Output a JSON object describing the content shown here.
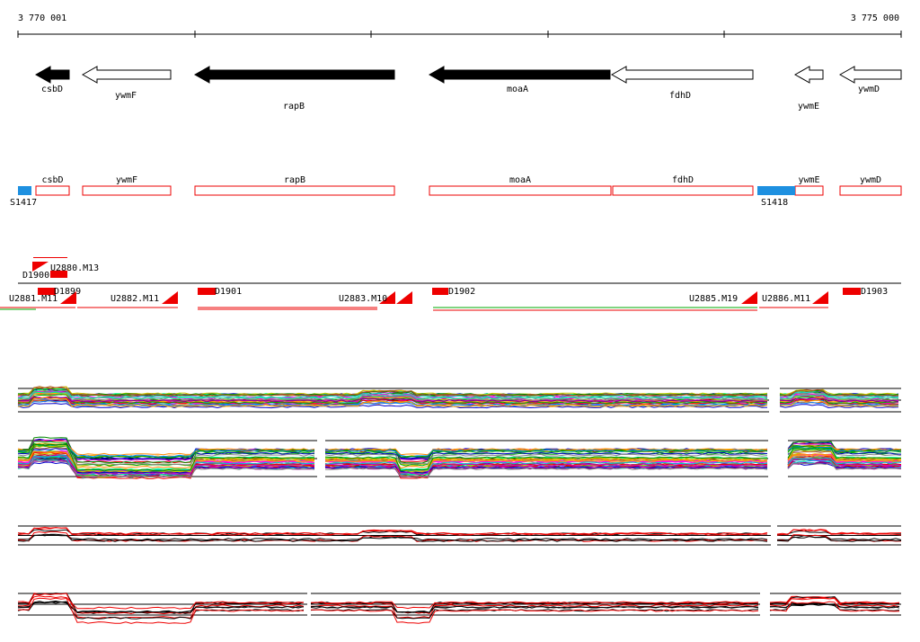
{
  "axis": {
    "start": "3 770 001",
    "end": "3 775 000"
  },
  "genes": [
    {
      "label": "csbD"
    },
    {
      "label": "ywmF"
    },
    {
      "label": "rapB"
    },
    {
      "label": "moaA"
    },
    {
      "label": "fdhD"
    },
    {
      "label": "ywmE"
    },
    {
      "label": "ywmD"
    }
  ],
  "segments": [
    {
      "label": "csbD"
    },
    {
      "label": "ywmF"
    },
    {
      "label": "rapB"
    },
    {
      "label": "moaA"
    },
    {
      "label": "fdhD"
    },
    {
      "label": "ywmE"
    },
    {
      "label": "ywmD"
    },
    {
      "label": "S1417"
    },
    {
      "label": "S1418"
    }
  ],
  "features": [
    {
      "label": "D1900"
    },
    {
      "label": "U2880.M13"
    },
    {
      "label": "D1899"
    },
    {
      "label": "U2881.M11"
    },
    {
      "label": "U2882.M11"
    },
    {
      "label": "D1901"
    },
    {
      "label": "U2883.M10"
    },
    {
      "label": "D1902"
    },
    {
      "label": "U2885.M19"
    },
    {
      "label": "U2886.M11"
    },
    {
      "label": "D1903"
    }
  ]
}
